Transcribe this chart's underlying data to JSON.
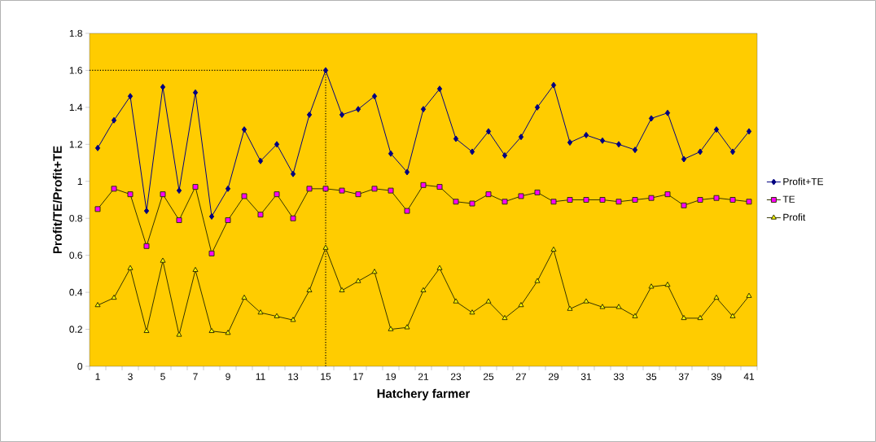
{
  "chart_data": {
    "type": "line",
    "xlabel": "Hatchery farmer",
    "ylabel": "Profit/TE/Profit+TE",
    "categories": [
      "1",
      null,
      "3",
      null,
      "5",
      null,
      "7",
      null,
      "9",
      null,
      "11",
      null,
      "13",
      null,
      "15",
      null,
      "17",
      null,
      "19",
      null,
      "21",
      null,
      "23",
      null,
      "25",
      null,
      "27",
      null,
      "29",
      null,
      "31",
      null,
      "33",
      null,
      "35",
      null,
      "37",
      null,
      "39",
      null,
      "41"
    ],
    "series": [
      {
        "name": "Profit+TE",
        "color": "#000080",
        "marker": "diamond",
        "values": [
          1.18,
          1.33,
          1.46,
          0.84,
          1.51,
          0.95,
          1.48,
          0.81,
          0.96,
          1.28,
          1.11,
          1.2,
          1.04,
          1.36,
          1.6,
          1.36,
          1.39,
          1.46,
          1.15,
          1.05,
          1.39,
          1.5,
          1.23,
          1.16,
          1.27,
          1.14,
          1.24,
          1.4,
          1.52,
          1.21,
          1.25,
          1.22,
          1.2,
          1.17,
          1.34,
          1.37,
          1.12,
          1.16,
          1.28,
          1.16,
          1.27
        ]
      },
      {
        "name": "TE",
        "color": "#ff00ff",
        "marker": "square",
        "values": [
          0.85,
          0.96,
          0.93,
          0.65,
          0.93,
          0.79,
          0.97,
          0.61,
          0.79,
          0.92,
          0.82,
          0.93,
          0.8,
          0.96,
          0.96,
          0.95,
          0.93,
          0.96,
          0.95,
          0.84,
          0.98,
          0.97,
          0.89,
          0.88,
          0.93,
          0.89,
          0.92,
          0.94,
          0.89,
          0.9,
          0.9,
          0.9,
          0.89,
          0.9,
          0.91,
          0.93,
          0.87,
          0.9,
          0.91,
          0.9,
          0.89
        ]
      },
      {
        "name": "Profit",
        "color": "#ffff00",
        "marker": "triangle",
        "values": [
          0.33,
          0.37,
          0.53,
          0.19,
          0.57,
          0.17,
          0.52,
          0.19,
          0.18,
          0.37,
          0.29,
          0.27,
          0.25,
          0.41,
          0.64,
          0.41,
          0.46,
          0.51,
          0.2,
          0.21,
          0.41,
          0.53,
          0.35,
          0.29,
          0.35,
          0.26,
          0.33,
          0.46,
          0.63,
          0.31,
          0.35,
          0.32,
          0.32,
          0.27,
          0.43,
          0.44,
          0.26,
          0.26,
          0.37,
          0.27,
          0.38
        ]
      }
    ],
    "ylim": [
      0,
      1.8
    ],
    "yticks": [
      0,
      0.2,
      0.4,
      0.6,
      0.8,
      1,
      1.2,
      1.4,
      1.6,
      1.8
    ],
    "ref_lines": [
      {
        "axis": "y",
        "value": 1.6,
        "line_style": "dotted"
      },
      {
        "axis": "x",
        "value": "15",
        "line_style": "dotted"
      }
    ],
    "grid": false,
    "legend": "right",
    "line_style": "solid"
  }
}
